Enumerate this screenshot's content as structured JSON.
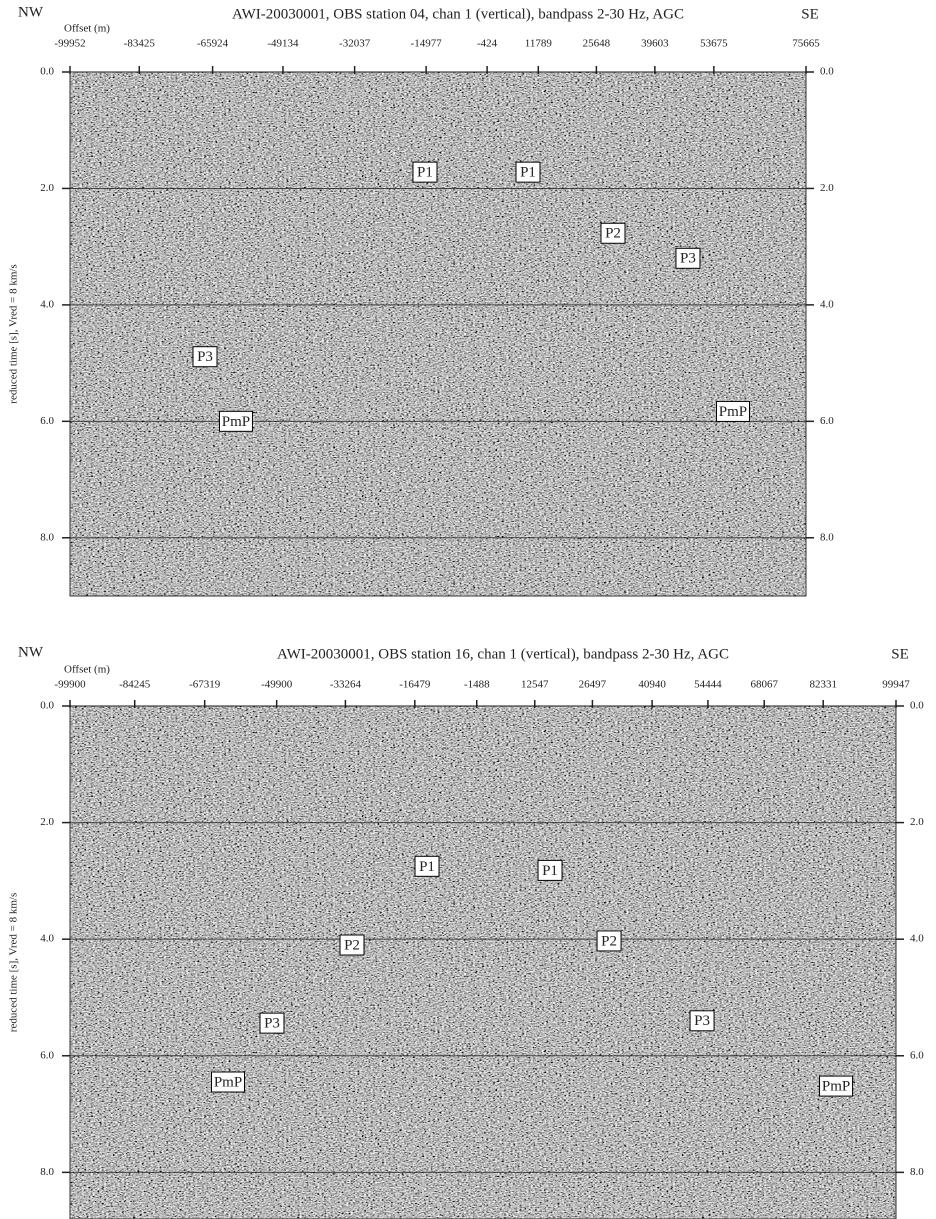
{
  "chart_data": [
    {
      "type": "seismic",
      "title": "AWI-20030001, OBS station 04, chan 1 (vertical), bandpass 2-30 Hz, AGC",
      "left_label": "NW",
      "right_label": "SE",
      "xlabel": "Offset (m)",
      "ylabel": "reduced time [s], Vred = 8 km/s",
      "xlim": [
        -99952,
        75665
      ],
      "xticks": [
        -99952,
        -83425,
        -65924,
        -49134,
        -32037,
        -14977,
        -424,
        11789,
        25648,
        39603,
        53675,
        75665
      ],
      "ylim": [
        0,
        9.0
      ],
      "yticks": [
        {
          "value": 0,
          "label": "0.0"
        },
        {
          "value": 2,
          "label": "2.0"
        },
        {
          "value": 4,
          "label": "4.0"
        },
        {
          "value": 6,
          "label": "6.0"
        },
        {
          "value": 8,
          "label": "8.0"
        }
      ],
      "y_reversed": true,
      "grid": true,
      "annotations": [
        {
          "text": "P1",
          "x": -15250,
          "y": 1.72
        },
        {
          "text": "P1",
          "x": 9330,
          "y": 1.72
        },
        {
          "text": "P2",
          "x": 29610,
          "y": 2.77
        },
        {
          "text": "P3",
          "x": 47500,
          "y": 3.2
        },
        {
          "text": "P3",
          "x": -67740,
          "y": 4.89
        },
        {
          "text": "PmP",
          "x": -60350,
          "y": 6.0
        },
        {
          "text": "PmP",
          "x": 58240,
          "y": 5.83
        }
      ]
    },
    {
      "type": "seismic",
      "title": "AWI-20030001, OBS station 16, chan 1 (vertical), bandpass 2-30 Hz, AGC",
      "left_label": "NW",
      "right_label": "SE",
      "xlabel": "Offset (m)",
      "ylabel": "reduced time [s], Vred = 8 km/s",
      "xlim": [
        -99900,
        99947
      ],
      "xticks": [
        -99900,
        -84245,
        -67319,
        -49900,
        -33264,
        -16479,
        -1488,
        12547,
        26497,
        40940,
        54444,
        68067,
        82331,
        99947
      ],
      "ylim": [
        0,
        8.8
      ],
      "yticks": [
        {
          "value": 0,
          "label": "0.0"
        },
        {
          "value": 2,
          "label": "2.0"
        },
        {
          "value": 4,
          "label": "4.0"
        },
        {
          "value": 6,
          "label": "6.0"
        },
        {
          "value": 8,
          "label": "8.0"
        }
      ],
      "y_reversed": true,
      "grid": true,
      "annotations": [
        {
          "text": "P1",
          "x": -13520,
          "y": 2.75
        },
        {
          "text": "P1",
          "x": 16240,
          "y": 2.82
        },
        {
          "text": "P2",
          "x": -31670,
          "y": 4.1
        },
        {
          "text": "P2",
          "x": 30520,
          "y": 4.03
        },
        {
          "text": "P3",
          "x": -51030,
          "y": 5.44
        },
        {
          "text": "P3",
          "x": 53020,
          "y": 5.4
        },
        {
          "text": "PmP",
          "x": -61670,
          "y": 6.45
        },
        {
          "text": "PmP",
          "x": 85440,
          "y": 6.52
        }
      ]
    }
  ]
}
